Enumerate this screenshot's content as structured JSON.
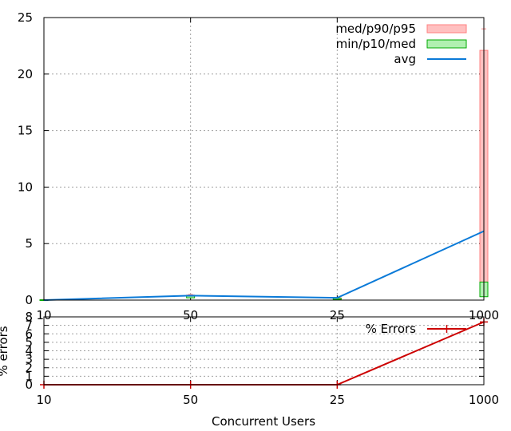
{
  "chart_data": [
    {
      "type": "line",
      "categories": [
        "10",
        "50",
        "25",
        "1000"
      ],
      "ylim": [
        0,
        25
      ],
      "yticks": [
        0,
        5,
        10,
        15,
        20,
        25
      ],
      "grid": true,
      "legend_position": "top-right",
      "series": [
        {
          "name": "med/p90/p95",
          "kind": "box",
          "color": "#ff8080",
          "fill": "#ffc0c0",
          "low": [
            0.03,
            0.35,
            0.15,
            1.6
          ],
          "high": [
            0.04,
            0.45,
            0.2,
            22.1
          ],
          "whisker_top": [
            0.05,
            0.5,
            0.22,
            24.0
          ]
        },
        {
          "name": "min/p10/med",
          "kind": "box",
          "color": "#00aa00",
          "fill": "#b0f0b0",
          "low": [
            0.01,
            0.2,
            0.05,
            0.3
          ],
          "high": [
            0.03,
            0.35,
            0.15,
            1.6
          ]
        },
        {
          "name": "avg",
          "kind": "line",
          "color": "#0a7ad8",
          "values": [
            0.0,
            0.4,
            0.2,
            6.1
          ]
        }
      ]
    },
    {
      "type": "line",
      "categories": [
        "10",
        "50",
        "25",
        "1000"
      ],
      "ylabel": "% errors",
      "xlabel": "Concurrent Users",
      "ylim": [
        0,
        8
      ],
      "yticks": [
        0,
        1,
        2,
        3,
        4,
        5,
        6,
        7,
        8
      ],
      "grid": true,
      "legend_position": "top-right",
      "series": [
        {
          "name": "% Errors",
          "color": "#cc0000",
          "values": [
            0,
            0,
            0,
            7.4
          ]
        }
      ]
    }
  ]
}
